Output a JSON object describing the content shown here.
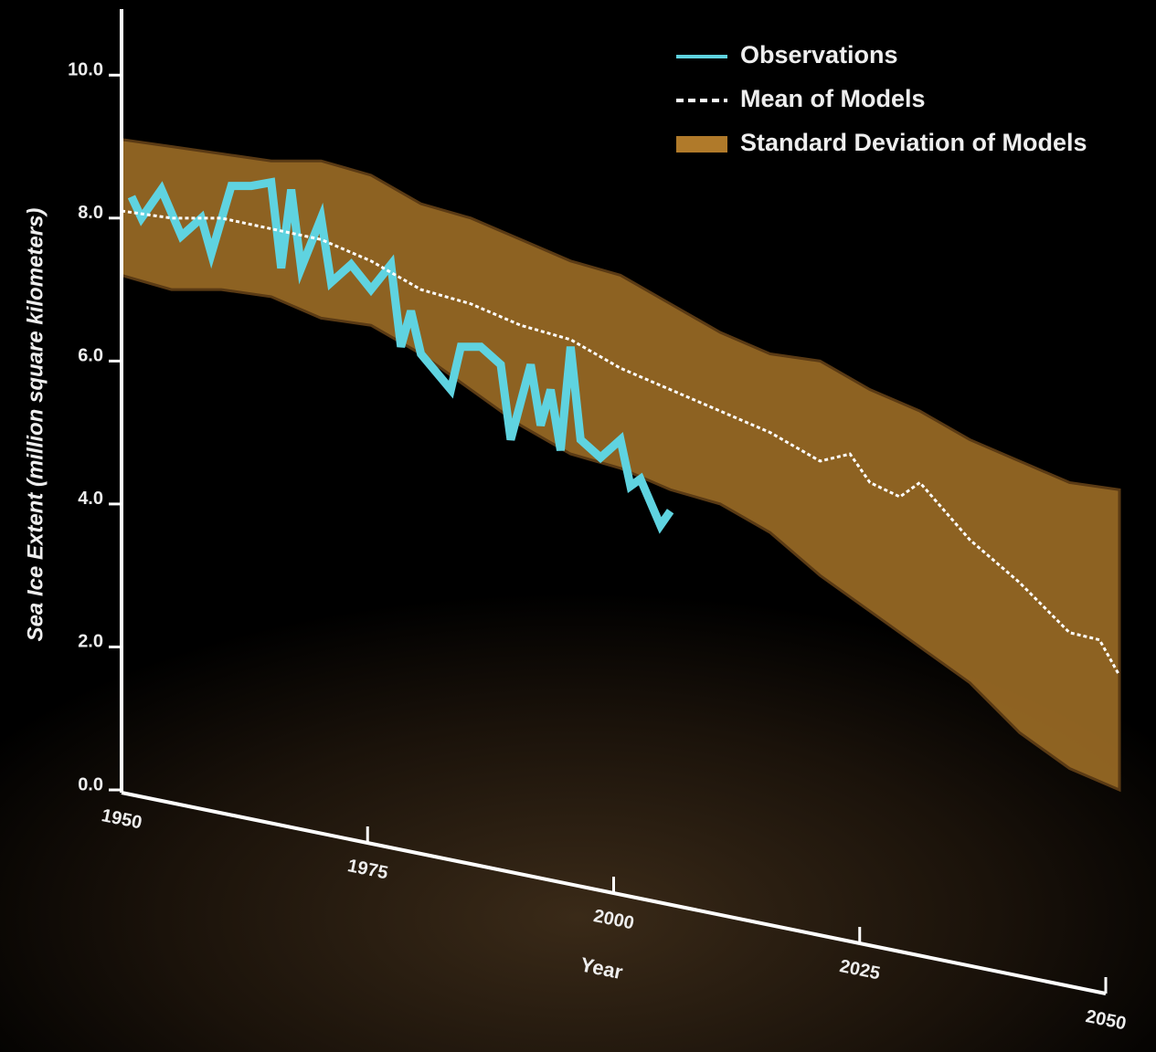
{
  "chart_data": {
    "type": "line",
    "y_label": "Sea Ice Extent (million square kilometers)",
    "x_label": "Year",
    "xlim": [
      1950,
      2050
    ],
    "xticks": [
      1950,
      1975,
      2000,
      2025,
      2050
    ],
    "ylim": [
      0,
      11
    ],
    "yticks": [
      {
        "value": 0,
        "label": "0.0"
      },
      {
        "value": 2,
        "label": "2.0"
      },
      {
        "value": 4,
        "label": "4.0"
      },
      {
        "value": 6,
        "label": "6.0"
      },
      {
        "value": 8,
        "label": "8.0"
      },
      {
        "value": 10,
        "label": "10.0"
      }
    ],
    "legend": "top-right",
    "band": {
      "name": "Standard Deviation of Models",
      "color": "#b07a2a",
      "x": [
        1950,
        1955,
        1960,
        1965,
        1970,
        1975,
        1980,
        1985,
        1990,
        1995,
        2000,
        2005,
        2010,
        2015,
        2020,
        2025,
        2030,
        2035,
        2040,
        2045,
        2050
      ],
      "upper": [
        9.1,
        9.0,
        8.9,
        8.8,
        8.8,
        8.6,
        8.2,
        8.0,
        7.7,
        7.4,
        7.2,
        6.8,
        6.4,
        6.1,
        6.0,
        5.6,
        5.3,
        4.9,
        4.6,
        4.3,
        4.2
      ],
      "lower": [
        7.2,
        7.0,
        7.0,
        6.9,
        6.6,
        6.5,
        6.1,
        5.6,
        5.1,
        4.7,
        4.5,
        4.2,
        4.0,
        3.6,
        3.0,
        2.5,
        2.0,
        1.5,
        0.8,
        0.3,
        0.0
      ]
    },
    "series": [
      {
        "name": "Observations",
        "color": "#5fd3e0",
        "style": "solid",
        "x": [
          1951,
          1952,
          1954,
          1956,
          1958,
          1959,
          1961,
          1963,
          1965,
          1966,
          1967,
          1968,
          1970,
          1971,
          1973,
          1975,
          1977,
          1978,
          1979,
          1980,
          1983,
          1984,
          1986,
          1988,
          1989,
          1991,
          1992,
          1993,
          1994,
          1995,
          1996,
          1998,
          2000,
          2001,
          2002,
          2004,
          2005
        ],
        "values": [
          8.3,
          8.0,
          8.4,
          7.75,
          8.0,
          7.5,
          8.45,
          8.45,
          8.5,
          7.3,
          8.4,
          7.3,
          8.0,
          7.1,
          7.35,
          7.0,
          7.35,
          6.2,
          6.7,
          6.1,
          5.6,
          6.2,
          6.2,
          5.95,
          4.9,
          5.95,
          5.1,
          5.6,
          4.75,
          6.2,
          4.9,
          4.65,
          4.9,
          4.25,
          4.35,
          3.7,
          3.9
        ]
      },
      {
        "name": "Mean of Models",
        "color": "#ffffff",
        "style": "dashed",
        "x": [
          1950,
          1955,
          1960,
          1965,
          1970,
          1975,
          1980,
          1985,
          1990,
          1995,
          2000,
          2005,
          2010,
          2015,
          2020,
          2023,
          2025,
          2028,
          2030,
          2035,
          2040,
          2045,
          2048,
          2050
        ],
        "values": [
          8.1,
          8.0,
          8.0,
          7.85,
          7.7,
          7.4,
          7.0,
          6.8,
          6.5,
          6.3,
          5.9,
          5.6,
          5.3,
          5.0,
          4.6,
          4.7,
          4.3,
          4.1,
          4.3,
          3.5,
          2.9,
          2.2,
          2.1,
          1.6
        ]
      }
    ]
  }
}
